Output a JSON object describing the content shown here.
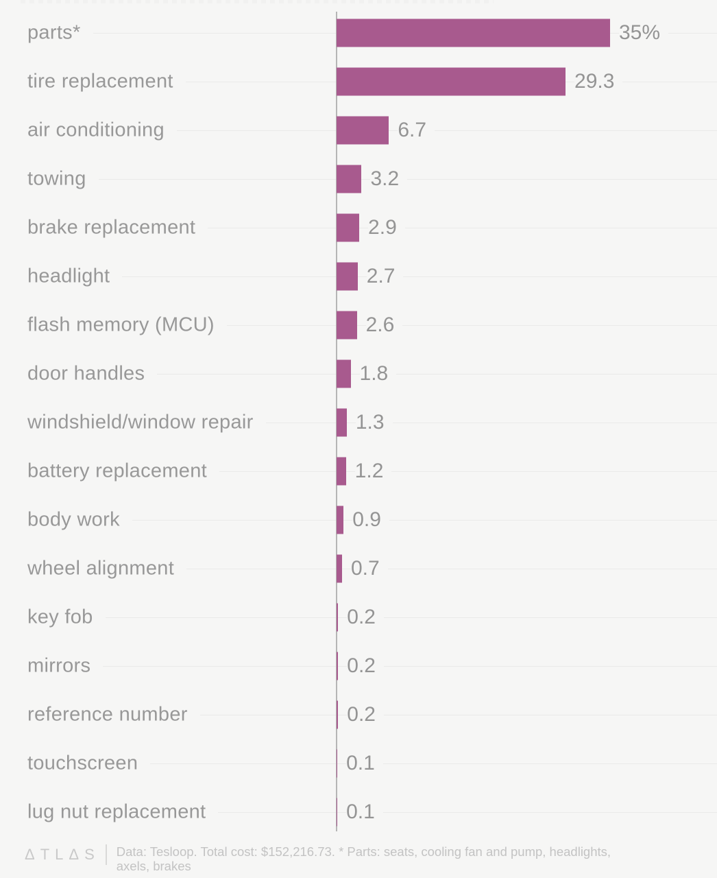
{
  "chart_data": {
    "type": "bar",
    "orientation": "horizontal",
    "title": "",
    "xlabel": "",
    "ylabel": "",
    "xlim": [
      0,
      35
    ],
    "grid": "row-guides",
    "legend": "none",
    "categories": [
      "parts*",
      "tire replacement",
      "air conditioning",
      "towing",
      "brake replacement",
      "headlight",
      "flash memory (MCU)",
      "door handles",
      "windshield/window repair",
      "battery replacement",
      "body work",
      "wheel alignment",
      "key fob",
      "mirrors",
      "reference number",
      "touchscreen",
      "lug nut replacement"
    ],
    "values": [
      35,
      29.3,
      6.7,
      3.2,
      2.9,
      2.7,
      2.6,
      1.8,
      1.3,
      1.2,
      0.9,
      0.7,
      0.2,
      0.2,
      0.2,
      0.1,
      0.1
    ],
    "value_labels": [
      "35%",
      "29.3",
      "6.7",
      "3.2",
      "2.9",
      "2.7",
      "2.6",
      "1.8",
      "1.3",
      "1.2",
      "0.9",
      "0.7",
      "0.2",
      "0.2",
      "0.2",
      "0.1",
      "0.1"
    ],
    "unit": "percent of total cost",
    "colors": {
      "bar": "#a85a8e",
      "category_label": "#989898",
      "value_label": "#949494",
      "gridline": "#eaeae9",
      "axis": "#b5b5b5",
      "background": "#f6f6f5"
    }
  },
  "footer": {
    "logo_text": "ΔTLΔS",
    "note_line1": "Data:  Tesloop. Total cost: $152,216.73. * Parts: seats, cooling fan and pump, headlights,",
    "note_line2": "axels, brakes"
  }
}
